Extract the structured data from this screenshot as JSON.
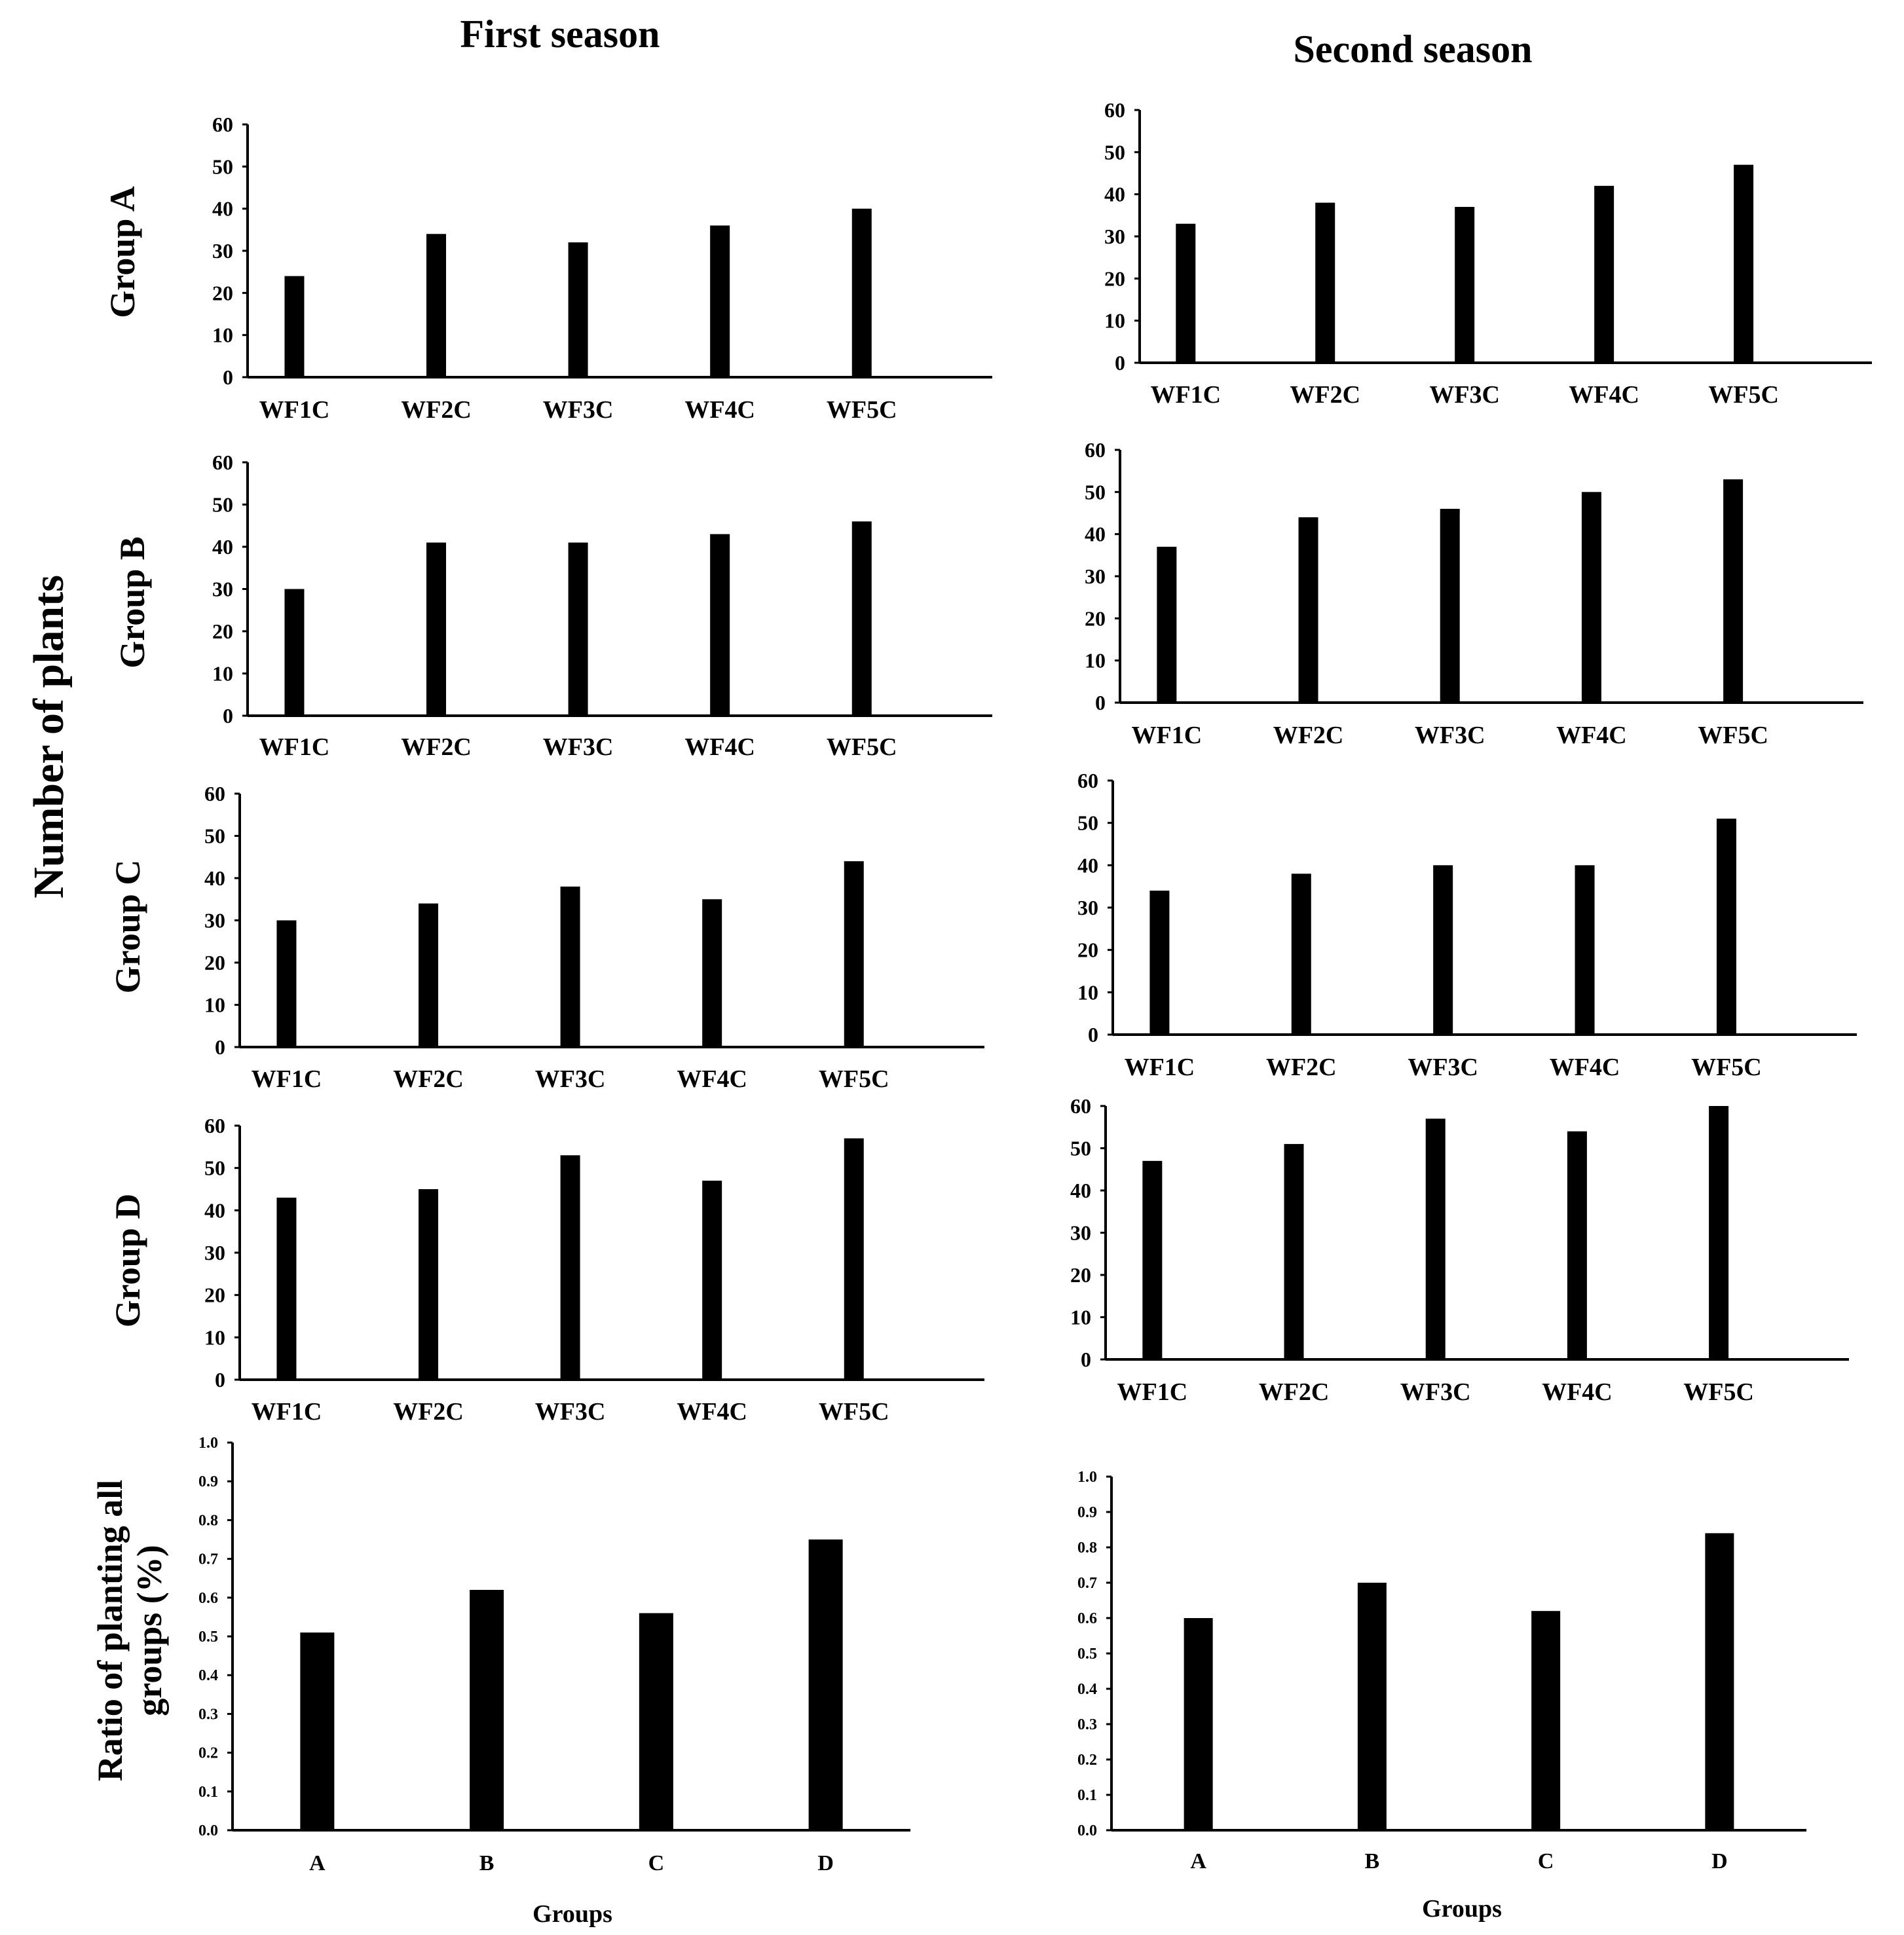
{
  "figure": {
    "season_titles": [
      "First season",
      "Second season"
    ],
    "y_main_label": "Number of plants",
    "row_labels": [
      "Group  A",
      "Group  B",
      "Group  C",
      "Group  D"
    ],
    "ratio_ylabel_line1": "Ratio of planting all",
    "ratio_ylabel_line2": "groups (%)",
    "groups_xlabel": "Groups",
    "bar_color": "#000000"
  },
  "chart_data": [
    {
      "id": "s1-A",
      "type": "bar",
      "title": "First season",
      "ylabel": "Group  A",
      "xlabel": "",
      "categories": [
        "WF1C",
        "WF2C",
        "WF3C",
        "WF4C",
        "WF5C"
      ],
      "values": [
        24,
        34,
        32,
        36,
        40
      ],
      "ylim": [
        0,
        60
      ],
      "yticks": [
        0,
        10,
        20,
        30,
        40,
        50,
        60
      ],
      "tick_format": "int"
    },
    {
      "id": "s2-A",
      "type": "bar",
      "title": "Second season",
      "ylabel": "",
      "xlabel": "",
      "categories": [
        "WF1C",
        "WF2C",
        "WF3C",
        "WF4C",
        "WF5C"
      ],
      "values": [
        33,
        38,
        37,
        42,
        47
      ],
      "ylim": [
        0,
        60
      ],
      "yticks": [
        0,
        10,
        20,
        30,
        40,
        50,
        60
      ],
      "tick_format": "int"
    },
    {
      "id": "s1-B",
      "type": "bar",
      "title": "First season",
      "ylabel": "Group  B",
      "xlabel": "",
      "categories": [
        "WF1C",
        "WF2C",
        "WF3C",
        "WF4C",
        "WF5C"
      ],
      "values": [
        30,
        41,
        41,
        43,
        46
      ],
      "ylim": [
        0,
        60
      ],
      "yticks": [
        0,
        10,
        20,
        30,
        40,
        50,
        60
      ],
      "tick_format": "int"
    },
    {
      "id": "s2-B",
      "type": "bar",
      "title": "Second season",
      "ylabel": "",
      "xlabel": "",
      "categories": [
        "WF1C",
        "WF2C",
        "WF3C",
        "WF4C",
        "WF5C"
      ],
      "values": [
        37,
        44,
        46,
        50,
        53
      ],
      "ylim": [
        0,
        60
      ],
      "yticks": [
        0,
        10,
        20,
        30,
        40,
        50,
        60
      ],
      "tick_format": "int"
    },
    {
      "id": "s1-C",
      "type": "bar",
      "title": "First season",
      "ylabel": "Group  C",
      "xlabel": "",
      "categories": [
        "WF1C",
        "WF2C",
        "WF3C",
        "WF4C",
        "WF5C"
      ],
      "values": [
        30,
        34,
        38,
        35,
        44
      ],
      "ylim": [
        0,
        60
      ],
      "yticks": [
        0,
        10,
        20,
        30,
        40,
        50,
        60
      ],
      "tick_format": "int"
    },
    {
      "id": "s2-C",
      "type": "bar",
      "title": "Second season",
      "ylabel": "",
      "xlabel": "",
      "categories": [
        "WF1C",
        "WF2C",
        "WF3C",
        "WF4C",
        "WF5C"
      ],
      "values": [
        34,
        38,
        40,
        40,
        51
      ],
      "ylim": [
        0,
        60
      ],
      "yticks": [
        0,
        10,
        20,
        30,
        40,
        50,
        60
      ],
      "tick_format": "int"
    },
    {
      "id": "s1-D",
      "type": "bar",
      "title": "First season",
      "ylabel": "Group  D",
      "xlabel": "",
      "categories": [
        "WF1C",
        "WF2C",
        "WF3C",
        "WF4C",
        "WF5C"
      ],
      "values": [
        43,
        45,
        53,
        47,
        57
      ],
      "ylim": [
        0,
        60
      ],
      "yticks": [
        0,
        10,
        20,
        30,
        40,
        50,
        60
      ],
      "tick_format": "int"
    },
    {
      "id": "s2-D",
      "type": "bar",
      "title": "Second season",
      "ylabel": "",
      "xlabel": "",
      "categories": [
        "WF1C",
        "WF2C",
        "WF3C",
        "WF4C",
        "WF5C"
      ],
      "values": [
        47,
        51,
        57,
        54,
        60
      ],
      "ylim": [
        0,
        60
      ],
      "yticks": [
        0,
        10,
        20,
        30,
        40,
        50,
        60
      ],
      "tick_format": "int"
    },
    {
      "id": "s1-ratio",
      "type": "bar",
      "title": "First season",
      "ylabel": "Ratio of planting all groups (%)",
      "xlabel": "Groups",
      "categories": [
        "A",
        "B",
        "C",
        "D"
      ],
      "values": [
        0.51,
        0.62,
        0.56,
        0.75
      ],
      "ylim": [
        0,
        1.0
      ],
      "yticks": [
        0.0,
        0.1,
        0.2,
        0.3,
        0.4,
        0.5,
        0.6,
        0.7,
        0.8,
        0.9,
        1.0
      ],
      "tick_format": "1dp"
    },
    {
      "id": "s2-ratio",
      "type": "bar",
      "title": "Second season",
      "ylabel": "",
      "xlabel": "Groups",
      "categories": [
        "A",
        "B",
        "C",
        "D"
      ],
      "values": [
        0.6,
        0.7,
        0.62,
        0.84
      ],
      "ylim": [
        0,
        1.0
      ],
      "yticks": [
        0.0,
        0.1,
        0.2,
        0.3,
        0.4,
        0.5,
        0.6,
        0.7,
        0.8,
        0.9,
        1.0
      ],
      "tick_format": "1dp"
    }
  ]
}
